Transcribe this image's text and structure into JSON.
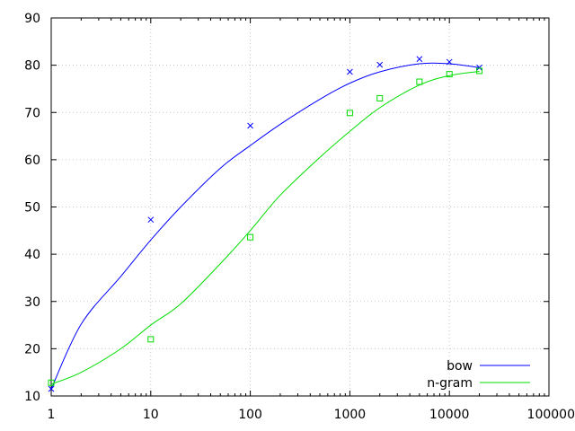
{
  "chart_data": {
    "type": "scatter",
    "title": "",
    "xlabel": "",
    "ylabel": "",
    "x_scale": "log",
    "xlim": [
      1,
      100000
    ],
    "ylim": [
      10,
      90
    ],
    "grid": true,
    "legend_position": "bottom-right",
    "x_ticks": [
      1,
      10,
      100,
      1000,
      10000,
      100000
    ],
    "x_tick_labels": [
      "1",
      "10",
      "100",
      "1000",
      "10000",
      "100000"
    ],
    "y_ticks": [
      10,
      20,
      30,
      40,
      50,
      60,
      70,
      80,
      90
    ],
    "y_tick_labels": [
      "10",
      "20",
      "30",
      "40",
      "50",
      "60",
      "70",
      "80",
      "90"
    ],
    "series": [
      {
        "name": "bow",
        "color": "#0000ff",
        "marker": "x",
        "points": [
          [
            1,
            11.5
          ],
          [
            10,
            47.3
          ],
          [
            100,
            67.2
          ],
          [
            1000,
            78.6
          ],
          [
            2000,
            80.1
          ],
          [
            5000,
            81.3
          ],
          [
            10000,
            80.7
          ],
          [
            20000,
            79.5
          ]
        ],
        "fit": [
          [
            1,
            11.5
          ],
          [
            2,
            25.2
          ],
          [
            5,
            35.3
          ],
          [
            10,
            43.0
          ],
          [
            20,
            50.0
          ],
          [
            50,
            58.2
          ],
          [
            100,
            63.0
          ],
          [
            200,
            67.5
          ],
          [
            500,
            72.8
          ],
          [
            1000,
            76.2
          ],
          [
            2000,
            78.6
          ],
          [
            5000,
            80.3
          ],
          [
            10000,
            80.3
          ],
          [
            20000,
            79.5
          ]
        ]
      },
      {
        "name": "n-gram",
        "color": "#00dd00",
        "marker": "square",
        "points": [
          [
            1,
            12.8
          ],
          [
            10,
            22.0
          ],
          [
            100,
            43.6
          ],
          [
            1000,
            69.9
          ],
          [
            2000,
            73.0
          ],
          [
            5000,
            76.5
          ],
          [
            10000,
            78.1
          ],
          [
            20000,
            78.8
          ]
        ],
        "fit": [
          [
            1,
            12.5
          ],
          [
            2,
            15.0
          ],
          [
            5,
            20.0
          ],
          [
            10,
            25.0
          ],
          [
            20,
            29.5
          ],
          [
            50,
            38.0
          ],
          [
            100,
            45.0
          ],
          [
            200,
            52.5
          ],
          [
            500,
            60.5
          ],
          [
            1000,
            66.0
          ],
          [
            2000,
            71.0
          ],
          [
            5000,
            75.8
          ],
          [
            10000,
            77.8
          ],
          [
            20000,
            78.7
          ]
        ]
      }
    ]
  }
}
